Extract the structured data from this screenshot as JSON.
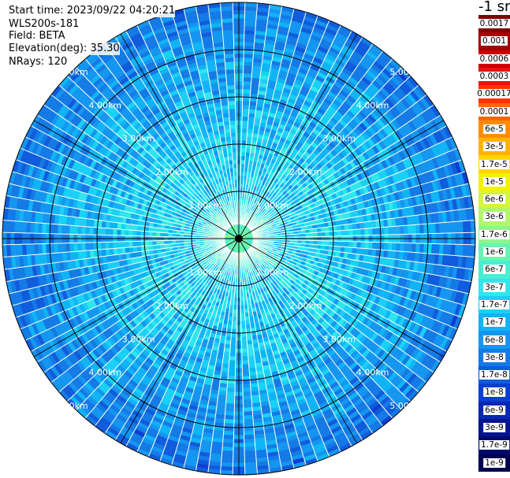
{
  "info": {
    "start_time": "Start time: 2023/09/22 04:20:21",
    "instrument": "WLS200s-181",
    "field": "Field: BETA",
    "elevation": "Elevation(deg): 35.30",
    "nrays": "NRays: 120"
  },
  "colorbar": {
    "unit_label": "-1 sr",
    "labels": [
      "0.0017",
      "0.001",
      "0.0006",
      "0.0003",
      "0.00017",
      "0.0001",
      "6e-5",
      "3e-5",
      "1.7e-5",
      "1e-5",
      "6e-6",
      "3e-6",
      "1.7e-6",
      "1e-6",
      "6e-7",
      "3e-7",
      "1.7e-7",
      "1e-7",
      "6e-8",
      "3e-8",
      "1.7e-8",
      "1e-8",
      "6e-9",
      "3e-9",
      "1.7e-9",
      "1e-9"
    ],
    "colors": [
      "#7f0000",
      "#a50000",
      "#cc0000",
      "#ee1010",
      "#ff3300",
      "#ff6600",
      "#ff8c00",
      "#ffb300",
      "#ffd500",
      "#f2f200",
      "#d4f53a",
      "#b2f76a",
      "#8ef58e",
      "#66f5b0",
      "#45f0d0",
      "#2ee6ec",
      "#1ad0f5",
      "#10b4f5",
      "#1496f0",
      "#147ae6",
      "#0f5cdc",
      "#0a40d2",
      "#0626b4",
      "#03148f",
      "#000a6e",
      "#000050"
    ]
  },
  "chart_data": {
    "type": "ppi",
    "field": "BETA",
    "nrays": 120,
    "elevation_deg": 35.3,
    "max_range_km": 5.0,
    "range_rings_km": [
      1,
      2,
      3,
      4,
      5
    ],
    "ring_labels": [
      "1.00km",
      "2.00km",
      "3.00km",
      "4.00km",
      "5.00km"
    ],
    "radial_line_azimuths_deg": [
      0,
      30,
      60,
      90,
      120,
      150,
      180,
      210,
      240,
      270,
      300,
      330
    ],
    "beta_profile": [
      {
        "range_km": 0.2,
        "beta": "1e-6"
      },
      {
        "range_km": 1.0,
        "beta": "1.7e-7"
      },
      {
        "range_km": 2.0,
        "beta": "1.7e-7"
      },
      {
        "range_km": 3.0,
        "beta": "1e-7"
      },
      {
        "range_km": 4.0,
        "beta": "6e-8"
      },
      {
        "range_km": 5.0,
        "beta": "3e-8"
      }
    ]
  }
}
